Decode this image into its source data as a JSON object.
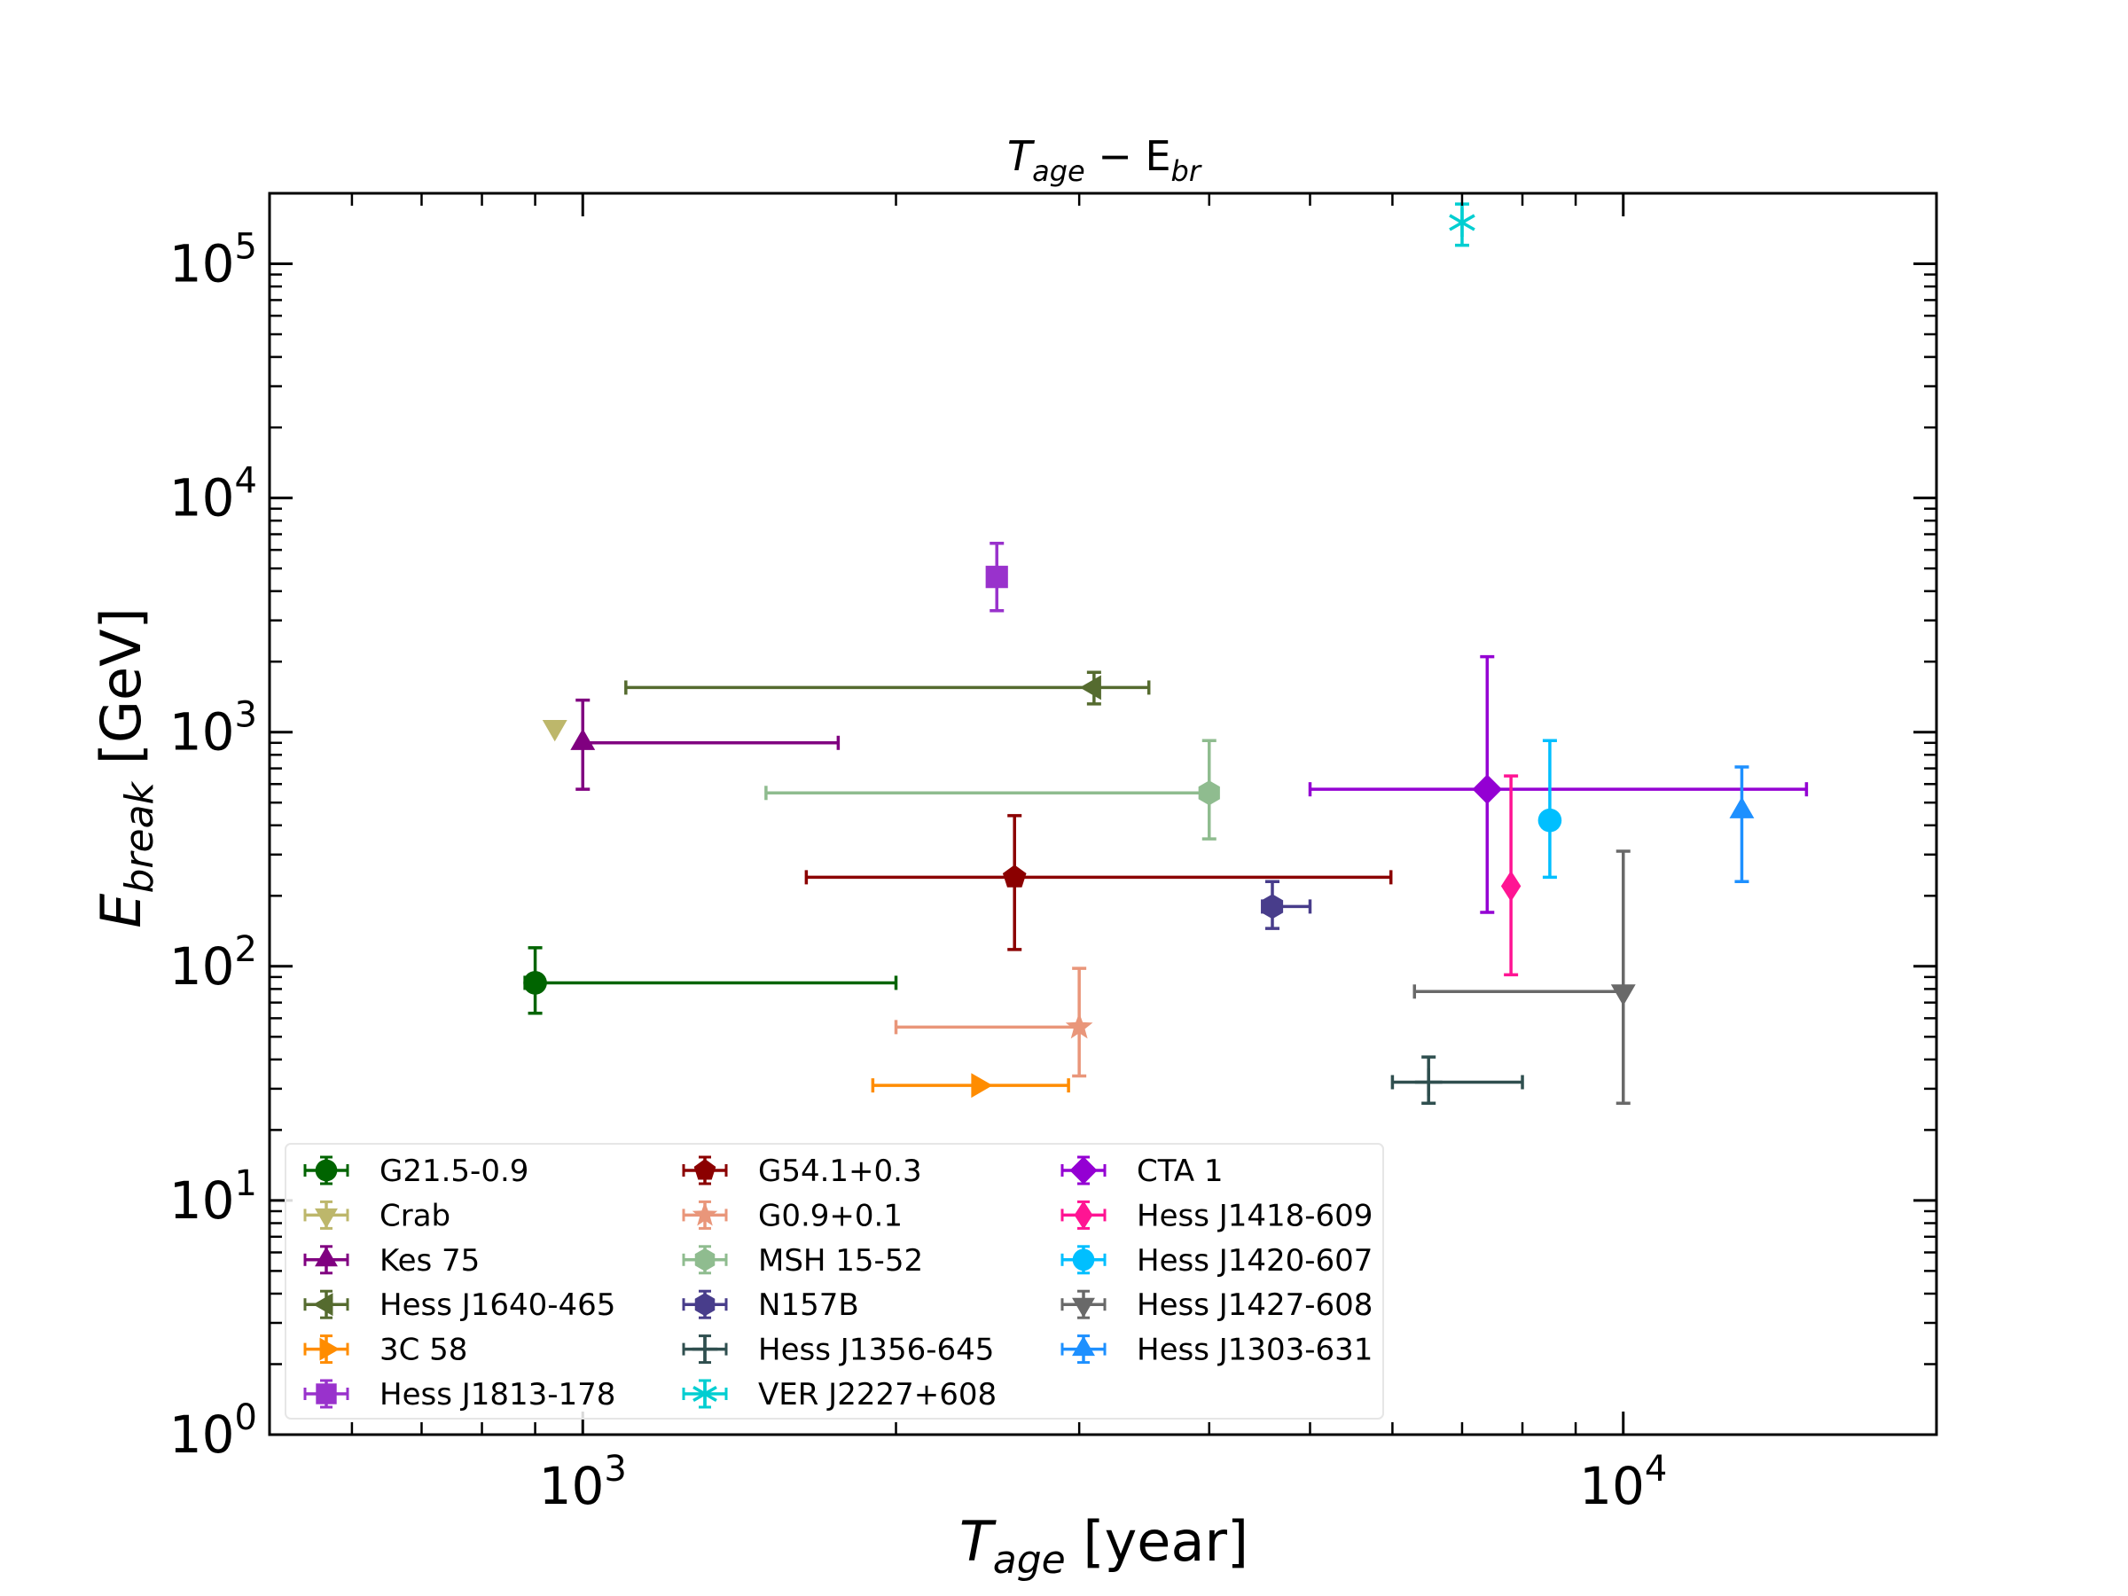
{
  "chart_data": {
    "type": "scatter",
    "title": {
      "main": "T",
      "sub1": "age",
      "mid": " − E",
      "sub2": "br"
    },
    "xlabel": {
      "main": "T",
      "sub": "age",
      "rest": " [year]"
    },
    "ylabel": {
      "main": "E",
      "sub": "break",
      "rest": " [GeV]"
    },
    "x_scale": "log",
    "y_scale": "log",
    "xlim": [
      500,
      20000
    ],
    "ylim": [
      1,
      200000
    ],
    "grid": false,
    "legend_position": "lower-left",
    "x_ticks": [
      {
        "value": 1000,
        "base": "10",
        "exp": "3"
      },
      {
        "value": 10000,
        "base": "10",
        "exp": "4"
      }
    ],
    "y_ticks": [
      {
        "value": 1,
        "base": "10",
        "exp": "0"
      },
      {
        "value": 10,
        "base": "10",
        "exp": "1"
      },
      {
        "value": 100,
        "base": "10",
        "exp": "2"
      },
      {
        "value": 1000,
        "base": "10",
        "exp": "3"
      },
      {
        "value": 10000,
        "base": "10",
        "exp": "4"
      },
      {
        "value": 100000,
        "base": "10",
        "exp": "5"
      }
    ],
    "series": [
      {
        "name": "G21.5-0.9",
        "color": "#006400",
        "marker": "circle",
        "x": 900,
        "y": 85,
        "xerr": [
          880,
          2000
        ],
        "yerr": [
          63,
          120
        ]
      },
      {
        "name": "Crab",
        "color": "#BDB76B",
        "marker": "triangle-down",
        "x": 940,
        "y": 1050,
        "xerr": null,
        "yerr": null
      },
      {
        "name": "Kes 75",
        "color": "#800080",
        "marker": "triangle-up",
        "x": 1000,
        "y": 900,
        "xerr": [
          1000,
          1760
        ],
        "yerr": [
          570,
          1370
        ]
      },
      {
        "name": "Hess J1640-465",
        "color": "#556B2F",
        "marker": "triangle-left",
        "x": 3100,
        "y": 1550,
        "xerr": [
          1100,
          3500
        ],
        "yerr": [
          1320,
          1800
        ]
      },
      {
        "name": "3C 58",
        "color": "#FF8C00",
        "marker": "triangle-right",
        "x": 2400,
        "y": 31,
        "xerr": [
          1900,
          2930
        ],
        "yerr": null
      },
      {
        "name": "Hess J1813-178",
        "color": "#9932CC",
        "marker": "square",
        "x": 2500,
        "y": 4600,
        "xerr": null,
        "yerr": [
          3300,
          6400
        ]
      },
      {
        "name": "G54.1+0.3",
        "color": "#8B0000",
        "marker": "pentagon",
        "x": 2600,
        "y": 240,
        "xerr": [
          1640,
          5980
        ],
        "yerr": [
          118,
          440
        ]
      },
      {
        "name": "G0.9+0.1",
        "color": "#E9967A",
        "marker": "star",
        "x": 3000,
        "y": 55,
        "xerr": [
          2000,
          3000
        ],
        "yerr": [
          34,
          98
        ]
      },
      {
        "name": "MSH 15-52",
        "color": "#8FBC8F",
        "marker": "hexagon",
        "x": 4000,
        "y": 550,
        "xerr": [
          1500,
          4000
        ],
        "yerr": [
          350,
          920
        ]
      },
      {
        "name": "N157B",
        "color": "#483D8B",
        "marker": "hexagon",
        "x": 4600,
        "y": 180,
        "xerr": [
          4500,
          5000
        ],
        "yerr": [
          145,
          230
        ]
      },
      {
        "name": "Hess J1356-645",
        "color": "#2F4F4F",
        "marker": "plus",
        "x": 6500,
        "y": 32,
        "xerr": [
          6000,
          8000
        ],
        "yerr": [
          26,
          41
        ]
      },
      {
        "name": "VER J2227+608",
        "color": "#00CED1",
        "marker": "asterisk",
        "x": 7000,
        "y": 150000,
        "xerr": null,
        "yerr": [
          120000,
          180000
        ]
      },
      {
        "name": "CTA 1",
        "color": "#9400D3",
        "marker": "diamond",
        "x": 7400,
        "y": 570,
        "xerr": [
          5000,
          15000
        ],
        "yerr": [
          170,
          2100
        ]
      },
      {
        "name": "Hess J1418-609",
        "color": "#FF1493",
        "marker": "thin-diamond",
        "x": 7800,
        "y": 220,
        "xerr": null,
        "yerr": [
          92,
          650
        ]
      },
      {
        "name": "Hess J1420-607",
        "color": "#00BFFF",
        "marker": "circle",
        "x": 8500,
        "y": 420,
        "xerr": null,
        "yerr": [
          240,
          920
        ]
      },
      {
        "name": "Hess J1427-608",
        "color": "#696969",
        "marker": "triangle-down",
        "x": 10000,
        "y": 78,
        "xerr": [
          6300,
          10000
        ],
        "yerr": [
          26,
          310
        ]
      },
      {
        "name": "Hess J1303-631",
        "color": "#1E90FF",
        "marker": "triangle-up",
        "x": 13000,
        "y": 460,
        "xerr": null,
        "yerr": [
          230,
          710
        ]
      }
    ]
  }
}
